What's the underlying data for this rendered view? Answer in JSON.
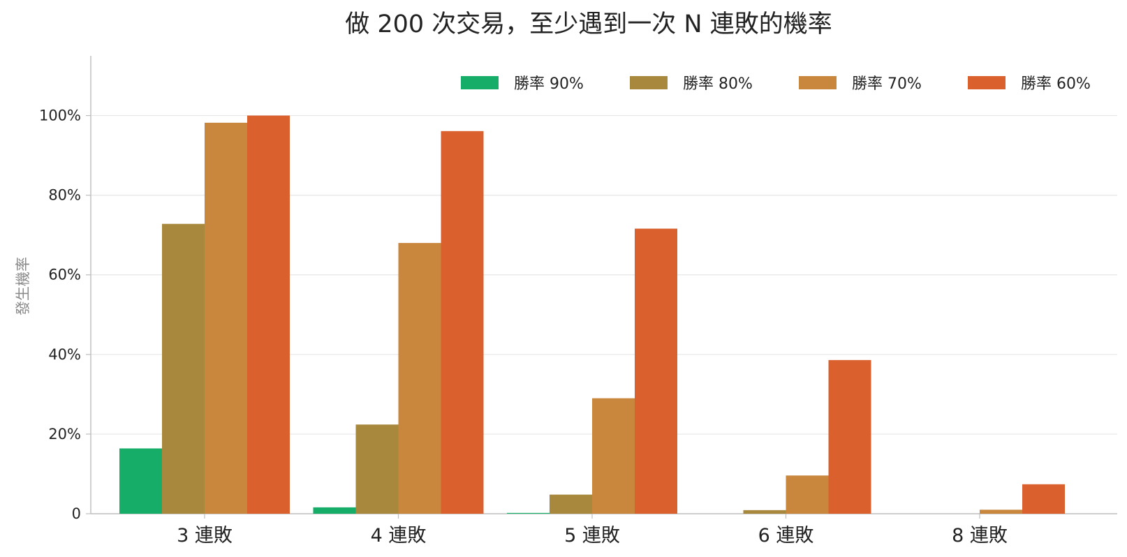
{
  "chart_data": {
    "type": "bar",
    "title": "做 200 次交易，至少遇到一次 N 連敗的機率",
    "xlabel": "",
    "ylabel": "發生機率",
    "categories": [
      "3 連敗",
      "4 連敗",
      "5 連敗",
      "6 連敗",
      "8 連敗"
    ],
    "ylim": [
      0,
      115
    ],
    "yticks": [
      0,
      20,
      40,
      60,
      80,
      100
    ],
    "ytick_labels": [
      "0",
      "20%",
      "40%",
      "60%",
      "80%",
      "100%"
    ],
    "grid": "horizontal",
    "legend_position": "top-right",
    "series": [
      {
        "name": "勝率 90%",
        "color": "#16ad68",
        "values": [
          16.4,
          1.6,
          0.2,
          0.0,
          0.0
        ]
      },
      {
        "name": "勝率 80%",
        "color": "#a8883c",
        "values": [
          72.8,
          22.4,
          4.8,
          0.9,
          0.0
        ]
      },
      {
        "name": "勝率 70%",
        "color": "#c8873d",
        "values": [
          98.2,
          68.0,
          29.0,
          9.6,
          1.0
        ]
      },
      {
        "name": "勝率 60%",
        "color": "#da602e",
        "values": [
          100.0,
          96.1,
          71.6,
          38.6,
          7.4
        ]
      }
    ]
  }
}
